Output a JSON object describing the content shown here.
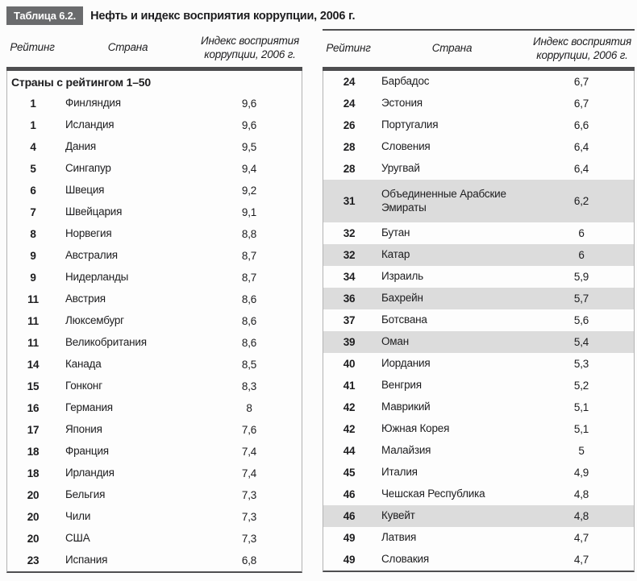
{
  "title": {
    "tag": "Таблица 6.2.",
    "text": "Нефть и индекс восприятия коррупции, 2006 г."
  },
  "columns": {
    "rank": "Рейтинг",
    "country": "Страна",
    "index": "Индекс восприятия коррупции, 2006 г."
  },
  "left_table": {
    "section_header": "Страны с рейтингом 1–50",
    "rows": [
      {
        "rank": "1",
        "country": "Финляндия",
        "index": "9,6",
        "highlight": false
      },
      {
        "rank": "1",
        "country": "Исландия",
        "index": "9,6",
        "highlight": false
      },
      {
        "rank": "4",
        "country": "Дания",
        "index": "9,5",
        "highlight": false
      },
      {
        "rank": "5",
        "country": "Сингапур",
        "index": "9,4",
        "highlight": false
      },
      {
        "rank": "6",
        "country": "Швеция",
        "index": "9,2",
        "highlight": false
      },
      {
        "rank": "7",
        "country": "Швейцария",
        "index": "9,1",
        "highlight": false
      },
      {
        "rank": "8",
        "country": "Норвегия",
        "index": "8,8",
        "highlight": false
      },
      {
        "rank": "9",
        "country": "Австралия",
        "index": "8,7",
        "highlight": false
      },
      {
        "rank": "9",
        "country": "Нидерланды",
        "index": "8,7",
        "highlight": false
      },
      {
        "rank": "11",
        "country": "Австрия",
        "index": "8,6",
        "highlight": false
      },
      {
        "rank": "11",
        "country": "Люксембург",
        "index": "8,6",
        "highlight": false
      },
      {
        "rank": "11",
        "country": "Великобритания",
        "index": "8,6",
        "highlight": false
      },
      {
        "rank": "14",
        "country": "Канада",
        "index": "8,5",
        "highlight": false
      },
      {
        "rank": "15",
        "country": "Гонконг",
        "index": "8,3",
        "highlight": false
      },
      {
        "rank": "16",
        "country": "Германия",
        "index": "8",
        "highlight": false
      },
      {
        "rank": "17",
        "country": "Япония",
        "index": "7,6",
        "highlight": false
      },
      {
        "rank": "18",
        "country": "Франция",
        "index": "7,4",
        "highlight": false
      },
      {
        "rank": "18",
        "country": "Ирландия",
        "index": "7,4",
        "highlight": false
      },
      {
        "rank": "20",
        "country": "Бельгия",
        "index": "7,3",
        "highlight": false
      },
      {
        "rank": "20",
        "country": "Чили",
        "index": "7,3",
        "highlight": false
      },
      {
        "rank": "20",
        "country": "США",
        "index": "7,3",
        "highlight": false
      },
      {
        "rank": "23",
        "country": "Испания",
        "index": "6,8",
        "highlight": false
      }
    ]
  },
  "right_table": {
    "rows": [
      {
        "rank": "24",
        "country": "Барбадос",
        "index": "6,7",
        "highlight": false
      },
      {
        "rank": "24",
        "country": "Эстония",
        "index": "6,7",
        "highlight": false
      },
      {
        "rank": "26",
        "country": "Португалия",
        "index": "6,6",
        "highlight": false
      },
      {
        "rank": "28",
        "country": "Словения",
        "index": "6,4",
        "highlight": false
      },
      {
        "rank": "28",
        "country": "Уругвай",
        "index": "6,4",
        "highlight": false
      },
      {
        "rank": "31",
        "country": "Объединенные Арабские Эмираты",
        "index": "6,2",
        "highlight": true,
        "tall": true
      },
      {
        "rank": "32",
        "country": "Бутан",
        "index": "6",
        "highlight": false
      },
      {
        "rank": "32",
        "country": "Катар",
        "index": "6",
        "highlight": true
      },
      {
        "rank": "34",
        "country": "Израиль",
        "index": "5,9",
        "highlight": false
      },
      {
        "rank": "36",
        "country": "Бахрейн",
        "index": "5,7",
        "highlight": true
      },
      {
        "rank": "37",
        "country": "Ботсвана",
        "index": "5,6",
        "highlight": false
      },
      {
        "rank": "39",
        "country": "Оман",
        "index": "5,4",
        "highlight": true
      },
      {
        "rank": "40",
        "country": "Иордания",
        "index": "5,3",
        "highlight": false
      },
      {
        "rank": "41",
        "country": "Венгрия",
        "index": "5,2",
        "highlight": false
      },
      {
        "rank": "42",
        "country": "Маврикий",
        "index": "5,1",
        "highlight": false
      },
      {
        "rank": "42",
        "country": "Южная Корея",
        "index": "5,1",
        "highlight": false
      },
      {
        "rank": "44",
        "country": "Малайзия",
        "index": "5",
        "highlight": false
      },
      {
        "rank": "45",
        "country": "Италия",
        "index": "4,9",
        "highlight": false
      },
      {
        "rank": "46",
        "country": "Чешская Республика",
        "index": "4,8",
        "highlight": false
      },
      {
        "rank": "46",
        "country": "Кувейт",
        "index": "4,8",
        "highlight": true
      },
      {
        "rank": "49",
        "country": "Латвия",
        "index": "4,7",
        "highlight": false
      },
      {
        "rank": "49",
        "country": "Словакия",
        "index": "4,7",
        "highlight": false
      }
    ]
  },
  "colors": {
    "tag_bg": "#6a6b6d",
    "divider": "#4e4e50",
    "row_highlight": "#dcdcdc",
    "border_light": "#b3b3b3",
    "text": "#1d1d1f"
  }
}
